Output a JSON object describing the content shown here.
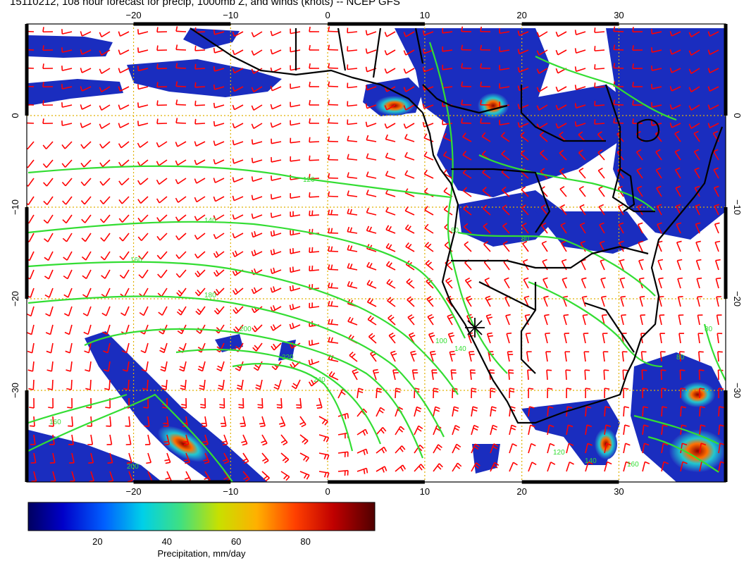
{
  "title": "15110212, 108 hour forecast for precip, 1000mb Z, and winds (knots) -- NCEP GFS",
  "map": {
    "lon_range": [
      -31,
      41
    ],
    "lat_range": [
      -40,
      10
    ],
    "lon_ticks": [
      {
        "value": -20,
        "label": "−20"
      },
      {
        "value": -10,
        "label": "−10"
      },
      {
        "value": 0,
        "label": "0"
      },
      {
        "value": 10,
        "label": "10"
      },
      {
        "value": 20,
        "label": "20"
      },
      {
        "value": 30,
        "label": "30"
      }
    ],
    "lat_ticks": [
      {
        "value": 0,
        "label": "0"
      },
      {
        "value": -10,
        "label": "−10"
      },
      {
        "value": -20,
        "label": "−20"
      },
      {
        "value": -30,
        "label": "−30"
      }
    ],
    "colors": {
      "land_outline": "#000000",
      "wind_barbs": "#ff0000",
      "contours": "#33dd33",
      "graticule": "#e0b000",
      "precip_low": "#1a2dbf",
      "precip_high": "#b00000"
    },
    "contour_labels": [
      "120",
      "140",
      "160",
      "180",
      "200",
      "220",
      "240",
      "160",
      "140",
      "100",
      "80",
      "80",
      "80",
      "80",
      "120",
      "140",
      "160",
      "200"
    ]
  },
  "colorbar": {
    "ticks": [
      {
        "value": 20,
        "label": "20"
      },
      {
        "value": 40,
        "label": "40"
      },
      {
        "value": 60,
        "label": "60"
      },
      {
        "value": 80,
        "label": "80"
      }
    ],
    "range": [
      0,
      100
    ],
    "label": "Precipitation, mm/day",
    "colors": [
      "#000060",
      "#0000c0",
      "#0050ff",
      "#00c8e0",
      "#40e080",
      "#c8e000",
      "#ffb000",
      "#ff4000",
      "#c00000",
      "#600000"
    ]
  }
}
